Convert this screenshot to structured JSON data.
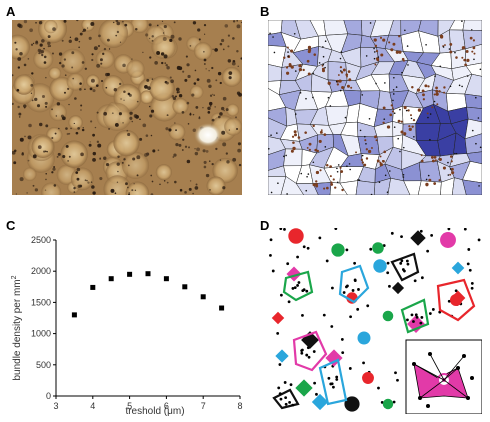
{
  "panels": {
    "a_label": "A",
    "b_label": "B",
    "c_label": "C",
    "d_label": "D"
  },
  "chart_data": {
    "type": "scatter",
    "title": "",
    "xlabel": "treshold (μm)",
    "ylabel": "bundle density per mm",
    "ylabel_superscript": "2",
    "xlim": [
      3,
      8
    ],
    "ylim": [
      0,
      2500
    ],
    "x_ticks": [
      3,
      4,
      5,
      6,
      7,
      8
    ],
    "y_ticks": [
      0,
      500,
      1000,
      1500,
      2000,
      2500
    ],
    "x": [
      3.5,
      4.0,
      4.5,
      5.0,
      5.5,
      6.0,
      6.5,
      7.0,
      7.5
    ],
    "y": [
      1300,
      1740,
      1880,
      1950,
      1960,
      1880,
      1750,
      1590,
      1410
    ],
    "grid": false,
    "legend": "none"
  }
}
